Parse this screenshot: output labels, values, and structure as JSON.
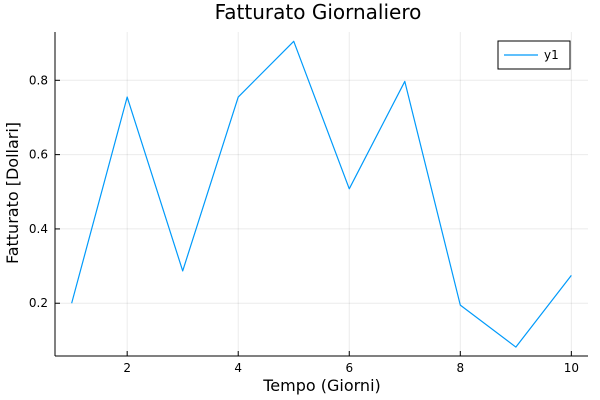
{
  "chart_data": {
    "type": "line",
    "title": "Fatturato Giornaliero",
    "xlabel": "Tempo (Giorni)",
    "ylabel": "Fatturato [Dollari]",
    "x": [
      1,
      2,
      3,
      4,
      5,
      6,
      7,
      8,
      9,
      10
    ],
    "series": [
      {
        "name": "y1",
        "color": "#009AFA",
        "values": [
          0.2,
          0.755,
          0.287,
          0.755,
          0.905,
          0.508,
          0.797,
          0.195,
          0.082,
          0.275
        ]
      }
    ],
    "xlim": [
      0.7,
      10.3
    ],
    "ylim": [
      0.058,
      0.93
    ],
    "xticks": [
      2,
      4,
      6,
      8,
      10
    ],
    "yticks": [
      0.2,
      0.4,
      0.6,
      0.8
    ],
    "xtick_labels": [
      "2",
      "4",
      "6",
      "8",
      "10"
    ],
    "ytick_labels": [
      "0.2",
      "0.4",
      "0.6",
      "0.8"
    ],
    "grid": true,
    "legend_position": "top-right"
  }
}
